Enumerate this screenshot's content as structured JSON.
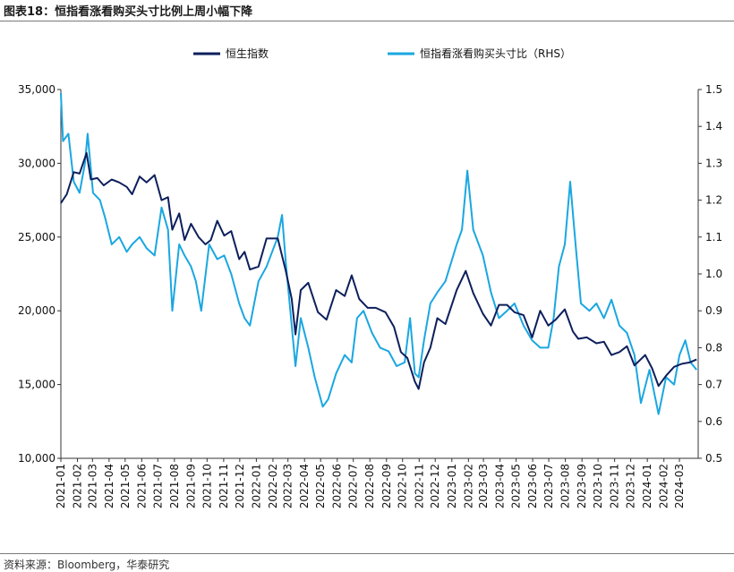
{
  "header": {
    "title": "图表18：恒指看涨看购买头寸比例上周小幅下降"
  },
  "footer": {
    "source": "资料来源：Bloomberg，华泰研究"
  },
  "colors": {
    "hsi": "#0d1f5c",
    "ratio": "#1aa7e1",
    "axis": "#333333"
  },
  "chart_data": {
    "type": "line",
    "title": "",
    "legend": {
      "placement": "top",
      "entries": [
        "恒生指数",
        "恒指看涨看购买头寸比（RHS）"
      ]
    },
    "grid": false,
    "y_left": {
      "lim": [
        10000,
        35000
      ],
      "ticks": [
        "10,000",
        "15,000",
        "20,000",
        "25,000",
        "30,000",
        "35,000"
      ],
      "tick_values": [
        10000,
        15000,
        20000,
        25000,
        30000,
        35000
      ]
    },
    "y_right": {
      "lim": [
        0.5,
        1.5
      ],
      "ticks": [
        "0.5",
        "0.6",
        "0.7",
        "0.8",
        "0.9",
        "1.0",
        "1.1",
        "1.2",
        "1.3",
        "1.4",
        "1.5"
      ],
      "tick_values": [
        0.5,
        0.6,
        0.7,
        0.8,
        0.9,
        1.0,
        1.1,
        1.2,
        1.3,
        1.4,
        1.5
      ]
    },
    "x_ticks": [
      "2021-01",
      "2021-02",
      "2021-03",
      "2021-04",
      "2021-05",
      "2021-06",
      "2021-07",
      "2021-08",
      "2021-09",
      "2021-10",
      "2021-11",
      "2021-12",
      "2022-01",
      "2022-02",
      "2022-03",
      "2022-04",
      "2022-05",
      "2022-06",
      "2022-07",
      "2022-08",
      "2022-09",
      "2022-10",
      "2022-11",
      "2022-12",
      "2023-01",
      "2023-02",
      "2023-03",
      "2023-04",
      "2023-05",
      "2023-06",
      "2023-07",
      "2023-08",
      "2023-09",
      "2023-10",
      "2023-11",
      "2023-12",
      "2024-01",
      "2024-02",
      "2024-03"
    ],
    "x_range": [
      "2021-01-01",
      "2024-04-05"
    ],
    "series": [
      {
        "name": "恒生指数",
        "axis": "left",
        "points": [
          [
            "2021-01-01",
            27300
          ],
          [
            "2021-01-12",
            27900
          ],
          [
            "2021-01-25",
            29400
          ],
          [
            "2021-02-05",
            29300
          ],
          [
            "2021-02-18",
            30700
          ],
          [
            "2021-02-26",
            28900
          ],
          [
            "2021-03-10",
            29000
          ],
          [
            "2021-03-22",
            28500
          ],
          [
            "2021-04-06",
            28900
          ],
          [
            "2021-04-20",
            28700
          ],
          [
            "2021-05-04",
            28400
          ],
          [
            "2021-05-14",
            27900
          ],
          [
            "2021-05-28",
            29100
          ],
          [
            "2021-06-10",
            28700
          ],
          [
            "2021-06-25",
            29200
          ],
          [
            "2021-07-08",
            27500
          ],
          [
            "2021-07-20",
            27700
          ],
          [
            "2021-07-28",
            25500
          ],
          [
            "2021-08-10",
            26600
          ],
          [
            "2021-08-20",
            24800
          ],
          [
            "2021-09-01",
            25900
          ],
          [
            "2021-09-15",
            25000
          ],
          [
            "2021-09-28",
            24500
          ],
          [
            "2021-10-08",
            24800
          ],
          [
            "2021-10-20",
            26100
          ],
          [
            "2021-11-02",
            25100
          ],
          [
            "2021-11-15",
            25400
          ],
          [
            "2021-11-30",
            23500
          ],
          [
            "2021-12-10",
            24000
          ],
          [
            "2021-12-20",
            22800
          ],
          [
            "2022-01-05",
            23000
          ],
          [
            "2022-01-20",
            24900
          ],
          [
            "2022-02-10",
            24900
          ],
          [
            "2022-02-25",
            22700
          ],
          [
            "2022-03-08",
            20800
          ],
          [
            "2022-03-15",
            18400
          ],
          [
            "2022-03-25",
            21400
          ],
          [
            "2022-04-08",
            21900
          ],
          [
            "2022-04-26",
            19900
          ],
          [
            "2022-05-12",
            19400
          ],
          [
            "2022-05-30",
            21400
          ],
          [
            "2022-06-15",
            21000
          ],
          [
            "2022-06-28",
            22400
          ],
          [
            "2022-07-12",
            20800
          ],
          [
            "2022-07-28",
            20200
          ],
          [
            "2022-08-12",
            20200
          ],
          [
            "2022-08-30",
            19900
          ],
          [
            "2022-09-15",
            18900
          ],
          [
            "2022-09-28",
            17200
          ],
          [
            "2022-10-10",
            16800
          ],
          [
            "2022-10-24",
            15200
          ],
          [
            "2022-10-31",
            14700
          ],
          [
            "2022-11-10",
            16500
          ],
          [
            "2022-11-22",
            17500
          ],
          [
            "2022-12-05",
            19500
          ],
          [
            "2022-12-20",
            19100
          ],
          [
            "2023-01-10",
            21400
          ],
          [
            "2023-01-27",
            22700
          ],
          [
            "2023-02-10",
            21200
          ],
          [
            "2023-02-28",
            19800
          ],
          [
            "2023-03-15",
            19000
          ],
          [
            "2023-03-30",
            20400
          ],
          [
            "2023-04-14",
            20400
          ],
          [
            "2023-04-28",
            19900
          ],
          [
            "2023-05-15",
            19700
          ],
          [
            "2023-05-31",
            18200
          ],
          [
            "2023-06-15",
            20000
          ],
          [
            "2023-06-30",
            19000
          ],
          [
            "2023-07-14",
            19400
          ],
          [
            "2023-07-31",
            20100
          ],
          [
            "2023-08-15",
            18600
          ],
          [
            "2023-08-25",
            18100
          ],
          [
            "2023-09-10",
            18200
          ],
          [
            "2023-09-28",
            17800
          ],
          [
            "2023-10-12",
            17900
          ],
          [
            "2023-10-26",
            17000
          ],
          [
            "2023-11-10",
            17200
          ],
          [
            "2023-11-24",
            17600
          ],
          [
            "2023-12-08",
            16300
          ],
          [
            "2023-12-28",
            17000
          ],
          [
            "2024-01-10",
            16100
          ],
          [
            "2024-01-22",
            14900
          ],
          [
            "2024-02-05",
            15600
          ],
          [
            "2024-02-20",
            16200
          ],
          [
            "2024-03-05",
            16400
          ],
          [
            "2024-03-20",
            16500
          ],
          [
            "2024-04-02",
            16700
          ]
        ]
      },
      {
        "name": "恒指看涨看购买头寸比（RHS）",
        "axis": "right",
        "points": [
          [
            "2021-01-01",
            1.49
          ],
          [
            "2021-01-05",
            1.36
          ],
          [
            "2021-01-15",
            1.38
          ],
          [
            "2021-01-25",
            1.25
          ],
          [
            "2021-02-05",
            1.22
          ],
          [
            "2021-02-15",
            1.3
          ],
          [
            "2021-02-20",
            1.38
          ],
          [
            "2021-03-02",
            1.22
          ],
          [
            "2021-03-15",
            1.2
          ],
          [
            "2021-03-25",
            1.15
          ],
          [
            "2021-04-06",
            1.08
          ],
          [
            "2021-04-20",
            1.1
          ],
          [
            "2021-05-04",
            1.06
          ],
          [
            "2021-05-14",
            1.08
          ],
          [
            "2021-05-28",
            1.1
          ],
          [
            "2021-06-10",
            1.07
          ],
          [
            "2021-06-25",
            1.05
          ],
          [
            "2021-07-08",
            1.18
          ],
          [
            "2021-07-20",
            1.12
          ],
          [
            "2021-07-28",
            0.9
          ],
          [
            "2021-08-10",
            1.08
          ],
          [
            "2021-08-20",
            1.05
          ],
          [
            "2021-09-01",
            1.02
          ],
          [
            "2021-09-10",
            0.98
          ],
          [
            "2021-09-20",
            0.9
          ],
          [
            "2021-10-05",
            1.08
          ],
          [
            "2021-10-20",
            1.04
          ],
          [
            "2021-11-02",
            1.05
          ],
          [
            "2021-11-15",
            1.0
          ],
          [
            "2021-11-30",
            0.92
          ],
          [
            "2021-12-10",
            0.88
          ],
          [
            "2021-12-20",
            0.86
          ],
          [
            "2022-01-05",
            0.98
          ],
          [
            "2022-01-20",
            1.02
          ],
          [
            "2022-02-10",
            1.1
          ],
          [
            "2022-02-18",
            1.16
          ],
          [
            "2022-02-25",
            1.03
          ],
          [
            "2022-03-08",
            0.86
          ],
          [
            "2022-03-15",
            0.75
          ],
          [
            "2022-03-25",
            0.88
          ],
          [
            "2022-04-08",
            0.8
          ],
          [
            "2022-04-20",
            0.72
          ],
          [
            "2022-05-05",
            0.64
          ],
          [
            "2022-05-15",
            0.66
          ],
          [
            "2022-05-30",
            0.73
          ],
          [
            "2022-06-15",
            0.78
          ],
          [
            "2022-06-28",
            0.76
          ],
          [
            "2022-07-08",
            0.88
          ],
          [
            "2022-07-20",
            0.9
          ],
          [
            "2022-08-05",
            0.84
          ],
          [
            "2022-08-20",
            0.8
          ],
          [
            "2022-09-05",
            0.79
          ],
          [
            "2022-09-20",
            0.75
          ],
          [
            "2022-10-05",
            0.76
          ],
          [
            "2022-10-15",
            0.88
          ],
          [
            "2022-10-24",
            0.73
          ],
          [
            "2022-10-31",
            0.72
          ],
          [
            "2022-11-10",
            0.82
          ],
          [
            "2022-11-22",
            0.92
          ],
          [
            "2022-12-05",
            0.95
          ],
          [
            "2022-12-20",
            0.98
          ],
          [
            "2023-01-10",
            1.08
          ],
          [
            "2023-01-20",
            1.12
          ],
          [
            "2023-01-30",
            1.28
          ],
          [
            "2023-02-10",
            1.12
          ],
          [
            "2023-02-28",
            1.05
          ],
          [
            "2023-03-15",
            0.95
          ],
          [
            "2023-03-30",
            0.88
          ],
          [
            "2023-04-14",
            0.9
          ],
          [
            "2023-04-28",
            0.92
          ],
          [
            "2023-05-15",
            0.86
          ],
          [
            "2023-05-31",
            0.82
          ],
          [
            "2023-06-15",
            0.8
          ],
          [
            "2023-06-30",
            0.8
          ],
          [
            "2023-07-10",
            0.88
          ],
          [
            "2023-07-20",
            1.02
          ],
          [
            "2023-07-31",
            1.08
          ],
          [
            "2023-08-10",
            1.25
          ],
          [
            "2023-08-20",
            1.08
          ],
          [
            "2023-08-30",
            0.92
          ],
          [
            "2023-09-15",
            0.9
          ],
          [
            "2023-09-28",
            0.92
          ],
          [
            "2023-10-12",
            0.88
          ],
          [
            "2023-10-26",
            0.93
          ],
          [
            "2023-11-10",
            0.86
          ],
          [
            "2023-11-24",
            0.84
          ],
          [
            "2023-12-08",
            0.78
          ],
          [
            "2023-12-20",
            0.65
          ],
          [
            "2024-01-05",
            0.74
          ],
          [
            "2024-01-22",
            0.62
          ],
          [
            "2024-02-05",
            0.72
          ],
          [
            "2024-02-20",
            0.7
          ],
          [
            "2024-03-01",
            0.78
          ],
          [
            "2024-03-12",
            0.82
          ],
          [
            "2024-03-22",
            0.76
          ],
          [
            "2024-04-02",
            0.74
          ]
        ]
      }
    ]
  }
}
